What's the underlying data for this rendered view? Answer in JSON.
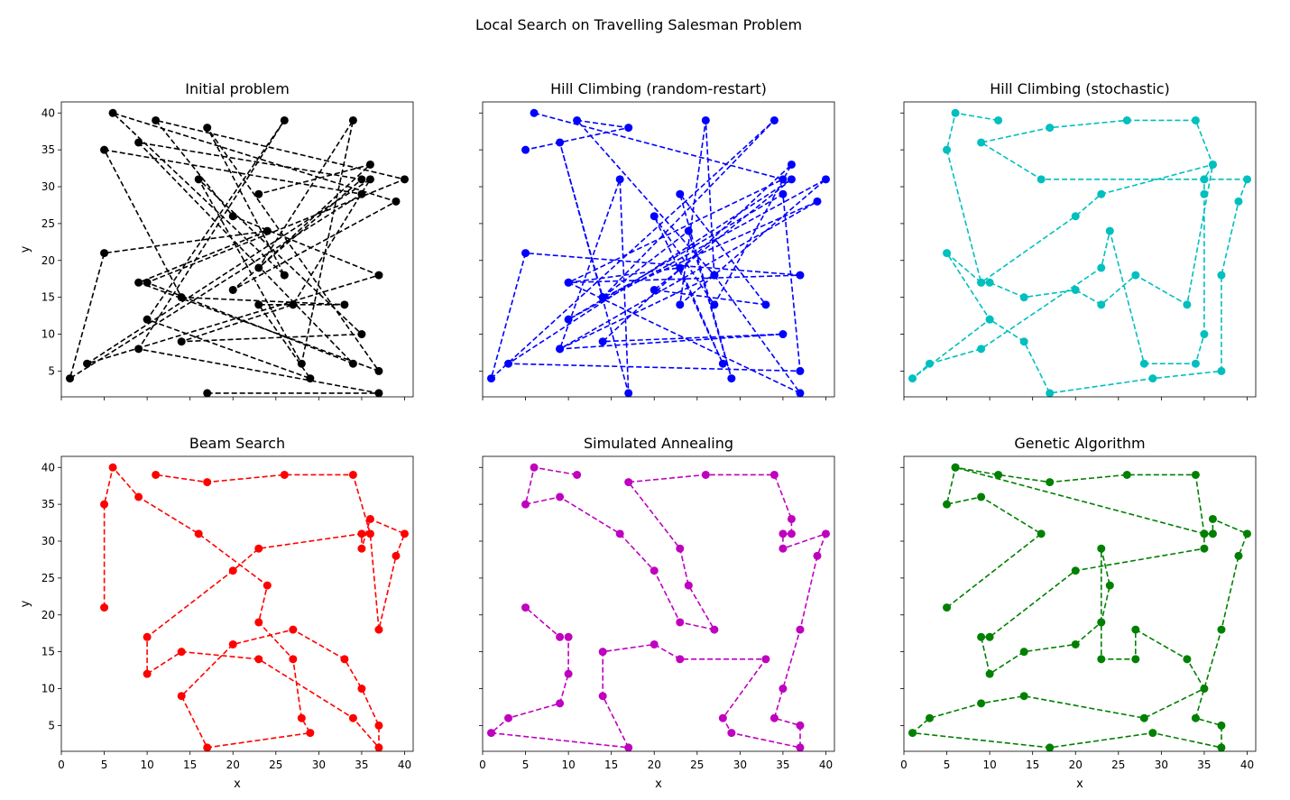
{
  "figure": {
    "suptitle": "Local Search on Travelling Salesman Problem"
  },
  "chart_data": [
    {
      "type": "line",
      "title": "Initial problem",
      "xlabel": "",
      "ylabel": "y",
      "xlim": [
        0,
        41
      ],
      "ylim": [
        1.5,
        41.5
      ],
      "xticks": [
        0,
        5,
        10,
        15,
        20,
        25,
        30,
        35,
        40
      ],
      "yticks": [
        5,
        10,
        15,
        20,
        25,
        30,
        35,
        40
      ],
      "color": "#000000",
      "linestyle": "dashed",
      "marker": "circle",
      "tour": [
        [
          17,
          2
        ],
        [
          37,
          2
        ],
        [
          9,
          8
        ],
        [
          26,
          39
        ],
        [
          10,
          12
        ],
        [
          29,
          4
        ],
        [
          23,
          14
        ],
        [
          33,
          14
        ],
        [
          14,
          15
        ],
        [
          5,
          35
        ],
        [
          35,
          29
        ],
        [
          1,
          4
        ],
        [
          5,
          21
        ],
        [
          24,
          24
        ],
        [
          9,
          17
        ],
        [
          37,
          5
        ],
        [
          17,
          38
        ],
        [
          26,
          18
        ],
        [
          6,
          40
        ],
        [
          39,
          28
        ],
        [
          20,
          16
        ],
        [
          35,
          31
        ],
        [
          9,
          36
        ],
        [
          34,
          6
        ],
        [
          10,
          17
        ],
        [
          40,
          31
        ],
        [
          11,
          39
        ],
        [
          20,
          26
        ],
        [
          37,
          18
        ],
        [
          3,
          6
        ],
        [
          36,
          31
        ],
        [
          27,
          14
        ],
        [
          14,
          9
        ],
        [
          35,
          10
        ],
        [
          16,
          31
        ],
        [
          28,
          6
        ],
        [
          34,
          39
        ],
        [
          23,
          19
        ],
        [
          36,
          33
        ],
        [
          23,
          29
        ]
      ]
    },
    {
      "type": "line",
      "title": "Hill Climbing (random-restart)",
      "xlabel": "",
      "ylabel": "",
      "xlim": [
        0,
        41
      ],
      "ylim": [
        1.5,
        41.5
      ],
      "xticks": [
        0,
        5,
        10,
        15,
        20,
        25,
        30,
        35,
        40
      ],
      "yticks": [
        5,
        10,
        15,
        20,
        25,
        30,
        35,
        40
      ],
      "color": "#0000ff",
      "linestyle": "dashed",
      "marker": "circle",
      "tour": [
        [
          6,
          40
        ],
        [
          35,
          31
        ],
        [
          10,
          17
        ],
        [
          37,
          2
        ],
        [
          27,
          18
        ],
        [
          9,
          8
        ],
        [
          16,
          31
        ],
        [
          17,
          2
        ],
        [
          9,
          36
        ],
        [
          14,
          15
        ],
        [
          34,
          39
        ],
        [
          1,
          4
        ],
        [
          5,
          21
        ],
        [
          37,
          18
        ],
        [
          10,
          17
        ],
        [
          23,
          19
        ],
        [
          28,
          6
        ],
        [
          20,
          26
        ],
        [
          27,
          14
        ],
        [
          36,
          33
        ],
        [
          14,
          9
        ],
        [
          35,
          10
        ],
        [
          9,
          8
        ],
        [
          39,
          28
        ],
        [
          14,
          15
        ],
        [
          24,
          24
        ],
        [
          29,
          4
        ],
        [
          23,
          29
        ],
        [
          33,
          14
        ],
        [
          20,
          16
        ],
        [
          36,
          31
        ],
        [
          3,
          6
        ],
        [
          37,
          5
        ],
        [
          35,
          29
        ],
        [
          10,
          12
        ],
        [
          40,
          31
        ],
        [
          23,
          14
        ],
        [
          26,
          39
        ],
        [
          27,
          18
        ],
        [
          11,
          39
        ],
        [
          17,
          38
        ],
        [
          5,
          35
        ]
      ]
    },
    {
      "type": "line",
      "title": "Hill Climbing (stochastic)",
      "xlabel": "",
      "ylabel": "",
      "xlim": [
        0,
        41
      ],
      "ylim": [
        1.5,
        41.5
      ],
      "xticks": [
        0,
        5,
        10,
        15,
        20,
        25,
        30,
        35,
        40
      ],
      "yticks": [
        5,
        10,
        15,
        20,
        25,
        30,
        35,
        40
      ],
      "color": "#00bfbf",
      "linestyle": "dashed",
      "marker": "circle",
      "tour": [
        [
          11,
          39
        ],
        [
          6,
          40
        ],
        [
          5,
          35
        ],
        [
          9,
          17
        ],
        [
          10,
          17
        ],
        [
          14,
          15
        ],
        [
          20,
          16
        ],
        [
          23,
          14
        ],
        [
          27,
          18
        ],
        [
          33,
          14
        ],
        [
          36,
          33
        ],
        [
          35,
          31
        ],
        [
          16,
          31
        ],
        [
          9,
          36
        ],
        [
          17,
          38
        ],
        [
          26,
          39
        ],
        [
          34,
          39
        ],
        [
          36,
          33
        ],
        [
          23,
          29
        ],
        [
          20,
          26
        ],
        [
          9,
          17
        ],
        [
          5,
          21
        ],
        [
          10,
          12
        ],
        [
          1,
          4
        ],
        [
          3,
          6
        ],
        [
          9,
          8
        ],
        [
          23,
          19
        ],
        [
          24,
          24
        ],
        [
          28,
          6
        ],
        [
          34,
          6
        ],
        [
          35,
          10
        ],
        [
          35,
          29
        ],
        [
          35,
          31
        ],
        [
          40,
          31
        ],
        [
          39,
          28
        ],
        [
          37,
          18
        ],
        [
          37,
          5
        ],
        [
          29,
          4
        ],
        [
          17,
          2
        ],
        [
          14,
          9
        ],
        [
          10,
          12
        ]
      ]
    },
    {
      "type": "line",
      "title": "Beam Search",
      "xlabel": "x",
      "ylabel": "y",
      "xlim": [
        0,
        41
      ],
      "ylim": [
        1.5,
        41.5
      ],
      "xticks": [
        0,
        5,
        10,
        15,
        20,
        25,
        30,
        35,
        40
      ],
      "yticks": [
        5,
        10,
        15,
        20,
        25,
        30,
        35,
        40
      ],
      "color": "#ff0000",
      "linestyle": "dashed",
      "marker": "circle",
      "tour": [
        [
          5,
          21
        ],
        [
          5,
          35
        ],
        [
          6,
          40
        ],
        [
          9,
          36
        ],
        [
          16,
          31
        ],
        [
          24,
          24
        ],
        [
          23,
          19
        ],
        [
          27,
          14
        ],
        [
          28,
          6
        ],
        [
          29,
          4
        ],
        [
          17,
          2
        ],
        [
          14,
          9
        ],
        [
          20,
          16
        ],
        [
          27,
          18
        ],
        [
          33,
          14
        ],
        [
          35,
          10
        ],
        [
          37,
          5
        ],
        [
          37,
          2
        ],
        [
          34,
          6
        ],
        [
          23,
          14
        ],
        [
          14,
          15
        ],
        [
          10,
          12
        ],
        [
          10,
          17
        ],
        [
          20,
          26
        ],
        [
          23,
          29
        ],
        [
          35,
          31
        ],
        [
          35,
          29
        ],
        [
          36,
          33
        ],
        [
          40,
          31
        ],
        [
          39,
          28
        ],
        [
          37,
          18
        ],
        [
          36,
          31
        ],
        [
          34,
          39
        ],
        [
          26,
          39
        ],
        [
          17,
          38
        ],
        [
          11,
          39
        ]
      ]
    },
    {
      "type": "line",
      "title": "Simulated Annealing",
      "xlabel": "x",
      "ylabel": "",
      "xlim": [
        0,
        41
      ],
      "ylim": [
        1.5,
        41.5
      ],
      "xticks": [
        0,
        5,
        10,
        15,
        20,
        25,
        30,
        35,
        40
      ],
      "yticks": [
        5,
        10,
        15,
        20,
        25,
        30,
        35,
        40
      ],
      "color": "#bf00bf",
      "linestyle": "dashed",
      "marker": "circle",
      "tour": [
        [
          11,
          39
        ],
        [
          6,
          40
        ],
        [
          5,
          35
        ],
        [
          9,
          36
        ],
        [
          16,
          31
        ],
        [
          20,
          26
        ],
        [
          23,
          19
        ],
        [
          27,
          18
        ],
        [
          24,
          24
        ],
        [
          23,
          29
        ],
        [
          17,
          38
        ],
        [
          26,
          39
        ],
        [
          34,
          39
        ],
        [
          36,
          33
        ],
        [
          36,
          31
        ],
        [
          35,
          31
        ],
        [
          35,
          29
        ],
        [
          40,
          31
        ],
        [
          39,
          28
        ],
        [
          37,
          18
        ],
        [
          35,
          10
        ],
        [
          34,
          6
        ],
        [
          37,
          5
        ],
        [
          37,
          2
        ],
        [
          29,
          4
        ],
        [
          28,
          6
        ],
        [
          33,
          14
        ],
        [
          23,
          14
        ],
        [
          20,
          16
        ],
        [
          14,
          15
        ],
        [
          14,
          9
        ],
        [
          17,
          2
        ],
        [
          1,
          4
        ],
        [
          3,
          6
        ],
        [
          9,
          8
        ],
        [
          10,
          12
        ],
        [
          10,
          17
        ],
        [
          9,
          17
        ],
        [
          5,
          21
        ]
      ]
    },
    {
      "type": "line",
      "title": "Genetic Algorithm",
      "xlabel": "x",
      "ylabel": "",
      "xlim": [
        0,
        41
      ],
      "ylim": [
        1.5,
        41.5
      ],
      "xticks": [
        0,
        5,
        10,
        15,
        20,
        25,
        30,
        35,
        40
      ],
      "yticks": [
        5,
        10,
        15,
        20,
        25,
        30,
        35,
        40
      ],
      "color": "#008000",
      "linestyle": "dashed",
      "marker": "circle",
      "tour": [
        [
          5,
          21
        ],
        [
          16,
          31
        ],
        [
          9,
          36
        ],
        [
          5,
          35
        ],
        [
          6,
          40
        ],
        [
          11,
          39
        ],
        [
          17,
          38
        ],
        [
          26,
          39
        ],
        [
          34,
          39
        ],
        [
          35,
          31
        ],
        [
          36,
          31
        ],
        [
          36,
          33
        ],
        [
          40,
          31
        ],
        [
          39,
          28
        ],
        [
          37,
          18
        ],
        [
          34,
          6
        ],
        [
          37,
          5
        ],
        [
          37,
          2
        ],
        [
          29,
          4
        ],
        [
          17,
          2
        ],
        [
          1,
          4
        ],
        [
          3,
          6
        ],
        [
          9,
          8
        ],
        [
          14,
          9
        ],
        [
          28,
          6
        ],
        [
          35,
          10
        ],
        [
          33,
          14
        ],
        [
          27,
          18
        ],
        [
          27,
          14
        ],
        [
          23,
          14
        ],
        [
          23,
          19
        ],
        [
          23,
          29
        ],
        [
          24,
          24
        ],
        [
          23,
          19
        ],
        [
          20,
          16
        ],
        [
          14,
          15
        ],
        [
          10,
          12
        ],
        [
          9,
          17
        ],
        [
          10,
          17
        ],
        [
          20,
          26
        ],
        [
          35,
          29
        ],
        [
          35,
          31
        ],
        [
          6,
          40
        ]
      ]
    }
  ]
}
